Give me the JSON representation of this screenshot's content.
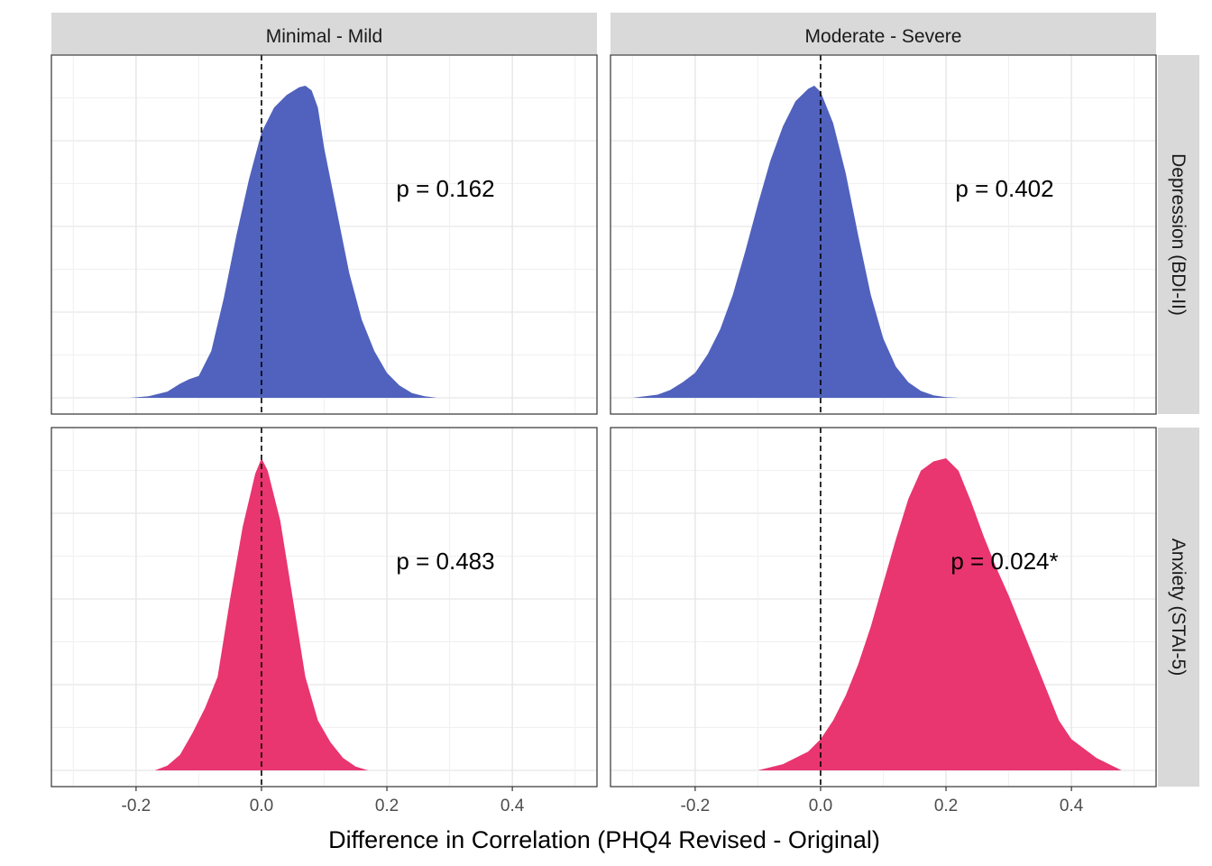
{
  "chart_data": {
    "type": "area",
    "xlabel": "Difference in Correlation (PHQ4 Revised - Original)",
    "ylabel": "",
    "xlim": [
      -0.335,
      0.535
    ],
    "x_ticks": [
      "-0.2",
      "0.0",
      "0.2",
      "0.4"
    ],
    "x_tick_values": [
      -0.2,
      0.0,
      0.2,
      0.4
    ],
    "reference_line_x": 0.0,
    "grid": true,
    "columns": [
      "Minimal - Mild",
      "Moderate - Severe"
    ],
    "rows": [
      "Depression (BDI-II)",
      "Anxiety (STAI-5)"
    ],
    "colors": {
      "Depression (BDI-II)": "#5062BD",
      "Anxiety (STAI-5)": "#E93570"
    },
    "panels": [
      {
        "row": "Depression (BDI-II)",
        "column": "Minimal - Mild",
        "annotation": "p = 0.162",
        "x": [
          -0.21,
          -0.18,
          -0.15,
          -0.13,
          -0.115,
          -0.1,
          -0.08,
          -0.06,
          -0.04,
          -0.02,
          0.0,
          0.02,
          0.04,
          0.06,
          0.07,
          0.08,
          0.09,
          0.1,
          0.12,
          0.14,
          0.16,
          0.18,
          0.2,
          0.22,
          0.24,
          0.26,
          0.28
        ],
        "y": [
          0.0,
          0.005,
          0.02,
          0.045,
          0.06,
          0.07,
          0.15,
          0.32,
          0.52,
          0.7,
          0.85,
          0.93,
          0.97,
          0.995,
          1.0,
          0.985,
          0.93,
          0.8,
          0.6,
          0.4,
          0.25,
          0.15,
          0.08,
          0.04,
          0.015,
          0.005,
          0.0
        ]
      },
      {
        "row": "Depression (BDI-II)",
        "column": "Moderate - Severe",
        "annotation": "p = 0.402",
        "x": [
          -0.3,
          -0.28,
          -0.26,
          -0.24,
          -0.22,
          -0.2,
          -0.18,
          -0.16,
          -0.14,
          -0.12,
          -0.1,
          -0.08,
          -0.06,
          -0.04,
          -0.02,
          -0.01,
          0.0,
          0.02,
          0.04,
          0.06,
          0.08,
          0.1,
          0.12,
          0.14,
          0.16,
          0.18,
          0.2,
          0.22
        ],
        "y": [
          0.0,
          0.005,
          0.01,
          0.025,
          0.05,
          0.08,
          0.14,
          0.22,
          0.33,
          0.47,
          0.62,
          0.76,
          0.87,
          0.95,
          0.99,
          1.0,
          0.98,
          0.88,
          0.72,
          0.52,
          0.33,
          0.19,
          0.1,
          0.05,
          0.022,
          0.008,
          0.002,
          0.0
        ]
      },
      {
        "row": "Anxiety (STAI-5)",
        "column": "Minimal - Mild",
        "annotation": "p = 0.483",
        "x": [
          -0.17,
          -0.15,
          -0.13,
          -0.11,
          -0.09,
          -0.07,
          -0.05,
          -0.03,
          -0.01,
          0.0,
          0.01,
          0.03,
          0.05,
          0.07,
          0.09,
          0.11,
          0.13,
          0.15,
          0.17
        ],
        "y": [
          0.0,
          0.015,
          0.05,
          0.12,
          0.2,
          0.3,
          0.55,
          0.78,
          0.95,
          1.0,
          0.96,
          0.8,
          0.55,
          0.3,
          0.16,
          0.09,
          0.04,
          0.012,
          0.0
        ]
      },
      {
        "row": "Anxiety (STAI-5)",
        "column": "Moderate - Severe",
        "annotation": "p = 0.024*",
        "x": [
          -0.1,
          -0.06,
          -0.02,
          0.0,
          0.02,
          0.04,
          0.06,
          0.08,
          0.1,
          0.12,
          0.14,
          0.16,
          0.18,
          0.2,
          0.22,
          0.24,
          0.26,
          0.28,
          0.3,
          0.32,
          0.34,
          0.36,
          0.38,
          0.4,
          0.44,
          0.48
        ],
        "y": [
          0.0,
          0.02,
          0.06,
          0.1,
          0.16,
          0.24,
          0.34,
          0.46,
          0.6,
          0.74,
          0.87,
          0.96,
          0.99,
          1.0,
          0.96,
          0.86,
          0.75,
          0.65,
          0.56,
          0.46,
          0.36,
          0.26,
          0.16,
          0.1,
          0.04,
          0.0
        ]
      }
    ]
  }
}
